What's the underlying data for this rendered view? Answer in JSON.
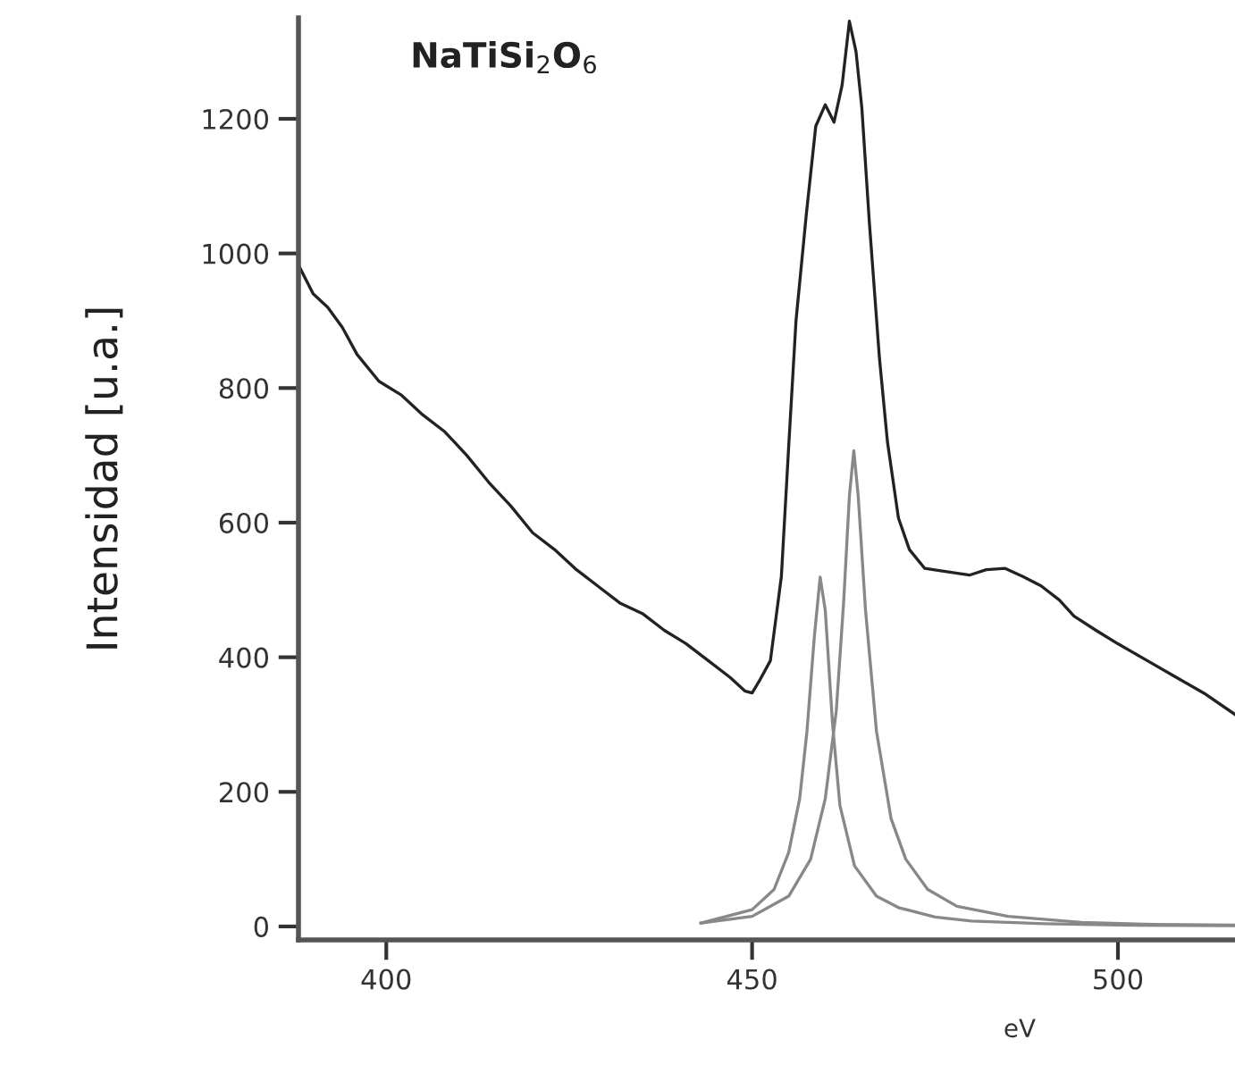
{
  "chart_data": {
    "type": "line",
    "title": "NaTiSi$_{2}$O$_{6}$",
    "xlabel": "eV",
    "ylabel": "Intensidad [u.a.]",
    "xlim": [
      388,
      516
    ],
    "ylim": [
      -20,
      1350
    ],
    "xticks": [
      400,
      450,
      500
    ],
    "yticks": [
      0,
      200,
      400,
      600,
      800,
      1000,
      1200
    ],
    "grid": false,
    "legend": false,
    "marker": "none",
    "line_style": "solid",
    "series": [
      {
        "color": "#222222",
        "x": [
          388,
          390,
          392,
          394,
          396,
          399,
          402,
          405,
          408,
          411,
          414,
          417,
          420,
          423,
          426,
          429,
          432,
          435,
          438,
          441,
          444,
          447,
          449,
          450,
          451,
          452.5,
          454,
          455,
          456,
          457.4,
          458.7,
          460,
          461.2,
          462.3,
          463.3,
          464.2,
          465,
          466,
          467.4,
          468.5,
          470,
          471.5,
          473.6,
          476,
          479.7,
          482,
          484.6,
          487,
          489.5,
          492,
          494,
          497,
          500,
          504,
          508,
          512,
          516
        ],
        "values": [
          983,
          940,
          920,
          890,
          850,
          810,
          790,
          760,
          735,
          700,
          660,
          625,
          585,
          560,
          530,
          505,
          480,
          465,
          440,
          420,
          395,
          370,
          350,
          347,
          365,
          395,
          520,
          713,
          900,
          1057,
          1189,
          1221,
          1195,
          1250,
          1345,
          1300,
          1216,
          1050,
          845,
          720,
          607,
          560,
          532,
          528,
          522,
          530,
          532,
          520,
          506,
          485,
          461,
          440,
          420,
          395,
          370,
          345,
          315
        ]
      },
      {
        "color": "#888888",
        "x": [
          443,
          450,
          453,
          455,
          456.5,
          457.5,
          458.5,
          459.3,
          460,
          461,
          462,
          464,
          467,
          470,
          475,
          480,
          490,
          500,
          516
        ],
        "values": [
          5,
          25,
          55,
          110,
          190,
          290,
          430,
          519,
          470,
          300,
          180,
          90,
          45,
          28,
          14,
          8,
          4,
          2,
          1
        ]
      },
      {
        "color": "#888888",
        "x": [
          443,
          450,
          455,
          458,
          460,
          461.5,
          462.5,
          463.3,
          463.9,
          464.5,
          465.5,
          467,
          469,
          471,
          474,
          478,
          485,
          495,
          505,
          516
        ],
        "values": [
          5,
          15,
          45,
          100,
          190,
          320,
          480,
          640,
          707,
          640,
          470,
          290,
          160,
          100,
          55,
          30,
          15,
          6,
          3,
          2
        ]
      }
    ]
  }
}
